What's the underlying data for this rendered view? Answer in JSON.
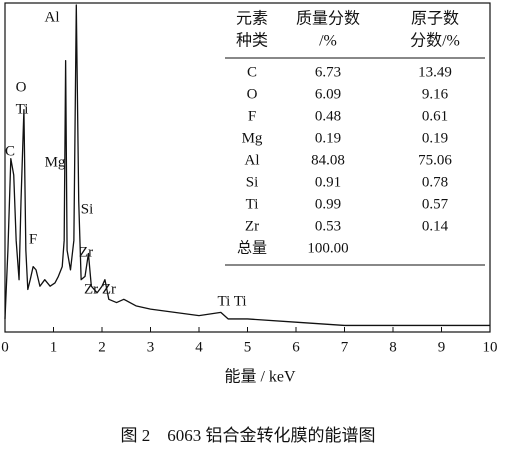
{
  "chart_data": {
    "type": "line",
    "x_label": "能量 / keV",
    "caption": "图 2　6063 铝合金转化膜的能谱图",
    "xlim": [
      0,
      10
    ],
    "xticks": [
      0,
      1,
      2,
      3,
      4,
      5,
      6,
      7,
      8,
      9,
      10
    ],
    "ylim": [
      0,
      100
    ],
    "series": [
      {
        "color": "#111111",
        "x": [
          0,
          0.06,
          0.12,
          0.18,
          0.23,
          0.29,
          0.33,
          0.39,
          0.43,
          0.47,
          0.52,
          0.58,
          0.64,
          0.72,
          0.82,
          0.93,
          1.03,
          1.1,
          1.18,
          1.22,
          1.25,
          1.28,
          1.35,
          1.42,
          1.47,
          1.52,
          1.57,
          1.65,
          1.72,
          1.78,
          1.9,
          2,
          2.06,
          2.14,
          2.3,
          2.45,
          2.7,
          3,
          3.5,
          4,
          4.45,
          4.6,
          5,
          6,
          7,
          8,
          9,
          10
        ],
        "values": [
          4,
          25,
          53,
          48,
          28,
          16,
          40,
          68,
          25,
          13,
          16,
          20,
          19,
          14,
          16,
          14,
          15,
          17,
          20,
          28,
          83,
          25,
          19,
          28,
          100,
          40,
          16,
          17,
          24,
          14,
          12,
          14,
          16,
          10,
          9,
          10,
          8,
          7,
          6,
          5,
          6,
          4,
          4,
          3,
          2,
          2,
          2,
          2
        ]
      }
    ],
    "annotations": [
      "C",
      "O",
      "Ti",
      "Mg",
      "Al",
      "Si",
      "F",
      "Zr",
      "Zr Zr",
      "Ti Ti"
    ],
    "table": {
      "header": [
        [
          "元素",
          "种类"
        ],
        [
          "质量分数",
          "/%"
        ],
        [
          "原子数",
          "分数/%"
        ]
      ],
      "rows": [
        [
          "C",
          "6.73",
          "13.49"
        ],
        [
          "O",
          "6.09",
          "9.16"
        ],
        [
          "F",
          "0.48",
          "0.61"
        ],
        [
          "Mg",
          "0.19",
          "0.19"
        ],
        [
          "Al",
          "84.08",
          "75.06"
        ],
        [
          "Si",
          "0.91",
          "0.78"
        ],
        [
          "Ti",
          "0.99",
          "0.57"
        ],
        [
          "Zr",
          "0.53",
          "0.14"
        ],
        [
          "总量",
          "100.00"
        ]
      ]
    }
  }
}
